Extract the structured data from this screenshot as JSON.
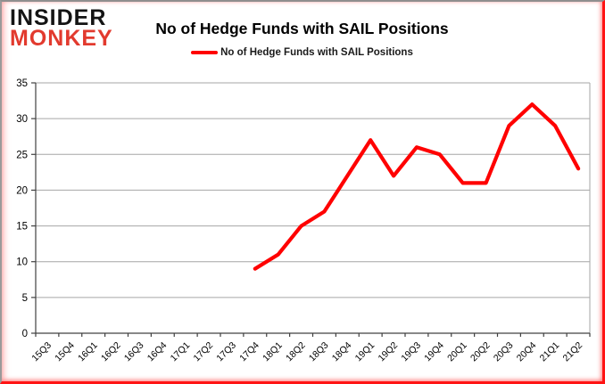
{
  "logo": {
    "line1": "INSIDER",
    "line2": "MONKEY"
  },
  "header": {
    "title": "No of Hedge Funds with SAIL Positions"
  },
  "legend": {
    "label": "No of Hedge Funds with SAIL Positions",
    "color": "#ff0000"
  },
  "chart_data": {
    "type": "line",
    "title": "No of Hedge Funds with SAIL Positions",
    "categories": [
      "15Q3",
      "15Q4",
      "16Q1",
      "16Q2",
      "16Q3",
      "16Q4",
      "17Q1",
      "17Q2",
      "17Q3",
      "17Q4",
      "18Q1",
      "18Q2",
      "18Q3",
      "18Q4",
      "19Q1",
      "19Q2",
      "19Q3",
      "19Q4",
      "20Q1",
      "20Q2",
      "20Q3",
      "20Q4",
      "21Q1",
      "21Q2"
    ],
    "series": [
      {
        "name": "No of Hedge Funds with SAIL Positions",
        "color": "#ff0000",
        "values": [
          null,
          null,
          null,
          null,
          null,
          null,
          null,
          null,
          null,
          9,
          11,
          15,
          17,
          22,
          27,
          22,
          26,
          25,
          21,
          21,
          29,
          32,
          29,
          23
        ]
      }
    ],
    "xlabel": "",
    "ylabel": "",
    "ylim": [
      0,
      35
    ],
    "ytick_step": 5,
    "grid": "horizontal",
    "legend_position": "top"
  },
  "colors": {
    "line": "#ff0000",
    "logo_black": "#141414",
    "logo_red": "#e23a2e",
    "gridline": "#a6a6a6",
    "axis": "#404040",
    "frame_grey": "#8f8f8f",
    "frame_red": "#ff1414"
  }
}
